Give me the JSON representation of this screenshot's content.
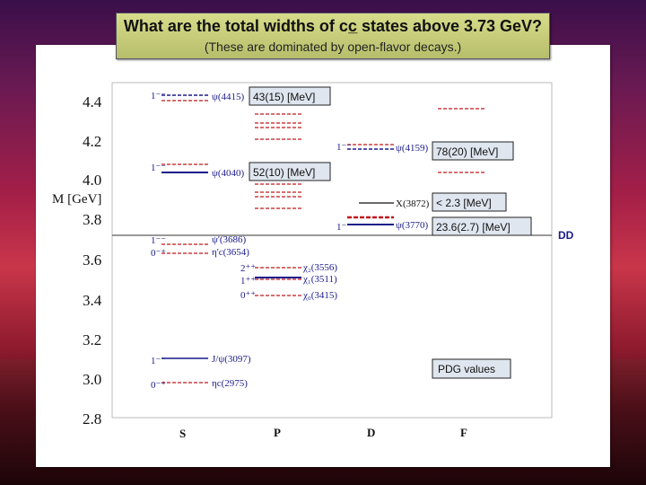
{
  "title": {
    "main": "What are the total widths of cc̲ states above 3.73 GeV?",
    "sub": "(These are dominated by open-flavor decays.)"
  },
  "axis": {
    "ylabel": "M [GeV]",
    "ticks": [
      "4.4",
      "4.2",
      "4.0",
      "3.8",
      "3.6",
      "3.4",
      "3.2",
      "3.0",
      "2.8"
    ],
    "xlabels": [
      "S",
      "P",
      "D",
      "F"
    ],
    "threshold_label": "DD"
  },
  "states": {
    "psi4415": {
      "jpc": "1⁻⁻",
      "name": "ψ(4415)"
    },
    "psi4040": {
      "jpc": "1⁻⁻",
      "name": "ψ(4040)"
    },
    "psi2s": {
      "jpc": "1⁻⁻",
      "name": "ψ'(3686)"
    },
    "etac2s": {
      "jpc": "0⁻⁺",
      "name": "η'c(3654)"
    },
    "jpsi": {
      "jpc": "1⁻⁻",
      "name": "J/ψ(3097)"
    },
    "etac": {
      "jpc": "0⁻⁺",
      "name": "ηc(2975)"
    },
    "chi2": {
      "jpc": "2⁺⁺",
      "name": "χ₂(3556)"
    },
    "chi1": {
      "jpc": "1⁺⁺",
      "name": "χ₁(3511)"
    },
    "chi0": {
      "jpc": "0⁺⁺",
      "name": "χ₀(3415)"
    },
    "psi4159": {
      "jpc": "1⁻⁻",
      "name": "ψ(4159)"
    },
    "x3872": {
      "name": "X(3872)"
    },
    "psi3770": {
      "jpc": "1⁻⁻",
      "name": "ψ(3770)"
    }
  },
  "widths": {
    "psi4415": "43(15) [MeV]",
    "psi4159": "78(20) [MeV]",
    "psi4040": "52(10) [MeV]",
    "x3872": "< 2.3 [MeV]",
    "psi3770": "23.6(2.7) [MeV]"
  },
  "note": "PDG values",
  "colors": {
    "predicted": "#c0181c",
    "observed": "#1a1a8c",
    "label_box_bg": "#dfe6ef",
    "threshold": "#1a1a8c"
  }
}
